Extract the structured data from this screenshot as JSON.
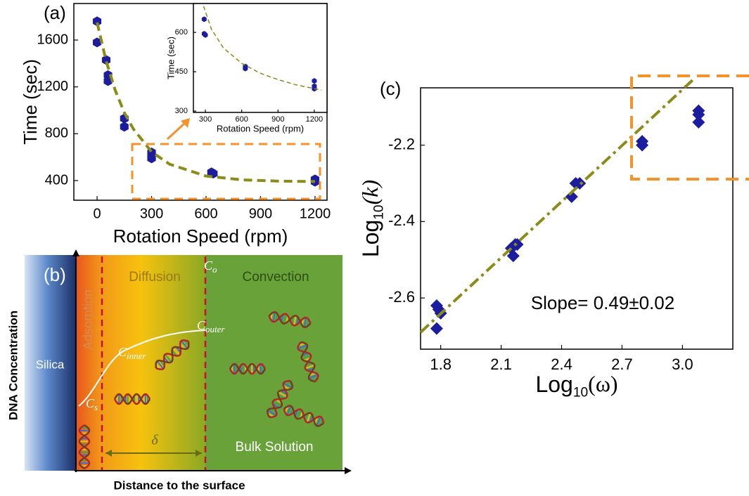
{
  "chart_data": [
    {
      "type": "scatter",
      "label": "(a)",
      "x_label": "Rotation Speed (rpm)",
      "y_label": "Time (sec)",
      "xlim": [
        -128,
        1266
      ],
      "ylim": [
        232,
        1912
      ],
      "xticks": [
        0,
        300,
        600,
        900,
        1200
      ],
      "yticks": [
        400,
        800,
        1200,
        1600
      ],
      "series": [
        {
          "mode": "markers",
          "marker": "hexagon",
          "color": "#1c1c9e",
          "x": [
            0,
            0,
            50,
            60,
            60,
            150,
            150,
            300,
            300,
            300,
            630,
            640,
            1200,
            1200
          ],
          "values": [
            1760,
            1580,
            1430,
            1300,
            1250,
            930,
            860,
            640,
            600,
            590,
            470,
            460,
            410,
            390
          ]
        },
        {
          "mode": "dashed",
          "color": "#8b8b1a",
          "x": [
            0,
            50,
            100,
            150,
            200,
            300,
            400,
            600,
            800,
            1000,
            1200
          ],
          "values": [
            1750,
            1420,
            1170,
            980,
            840,
            645,
            539,
            438,
            406,
            395,
            392
          ]
        }
      ]
    },
    {
      "type": "scatter",
      "x_label": "Rotation Speed (rpm)",
      "y_label": "Time (sec)",
      "xlim": [
        201,
        1305
      ],
      "ylim": [
        295,
        710
      ],
      "xticks": [
        300,
        600,
        900,
        1200
      ],
      "yticks": [
        300,
        450,
        600
      ],
      "series": [
        {
          "mode": "markers",
          "marker": "hexagon",
          "color": "#1c1c9e",
          "x": [
            290,
            290,
            300,
            630,
            630,
            1200,
            1200,
            1200
          ],
          "values": [
            650,
            595,
            590,
            470,
            462,
            415,
            395,
            385
          ]
        },
        {
          "mode": "dashed",
          "color": "#8b8b1a",
          "x": [
            285,
            350,
            450,
            600,
            750,
            900,
            1050,
            1260
          ],
          "values": [
            700,
            612,
            540,
            482,
            445,
            420,
            400,
            380
          ]
        }
      ]
    },
    {
      "type": "scatter",
      "label": "(c)",
      "annotation": "Slope= 0.49±0.02",
      "x_label": {
        "base": "Log",
        "sub": "10",
        "arg": "(ω)"
      },
      "y_label": {
        "base": "Log",
        "sub": "10",
        "arg": "(k)"
      },
      "xlim": [
        1.7,
        3.25
      ],
      "ylim": [
        -2.734,
        -2.05
      ],
      "xticks": [
        1.8,
        2.1,
        2.4,
        2.7,
        {
          "value": 3,
          "label": "3.0"
        }
      ],
      "yticks": [
        -2.6,
        -2.4,
        -2.2
      ],
      "series": [
        {
          "mode": "markers",
          "marker": "diamond",
          "color": "#1c1c9e",
          "x": [
            1.78,
            1.79,
            1.8,
            1.78,
            2.15,
            2.17,
            2.16,
            2.18,
            2.45,
            2.47,
            2.49,
            2.8,
            2.8,
            3.08,
            3.08,
            3.08
          ],
          "values": [
            -2.62,
            -2.63,
            -2.64,
            -2.68,
            -2.47,
            -2.46,
            -2.49,
            -2.46,
            -2.335,
            -2.3,
            -2.3,
            -2.19,
            -2.2,
            -2.11,
            -2.12,
            -2.14
          ]
        },
        {
          "mode": "dashdot",
          "color": "#8b8b1a",
          "x": [
            1.7,
            3.05
          ],
          "values": [
            -2.69,
            -2.03
          ]
        }
      ]
    }
  ],
  "diagram": {
    "label": "(b)",
    "silica": "Silica",
    "adsorption": "Adsorption",
    "diffusion": "Diffusion",
    "convection": "Convection",
    "c_o": {
      "main": "C",
      "sub": "o"
    },
    "c_outer": {
      "main": "C",
      "sub": "outer"
    },
    "c_inner": {
      "main": "C",
      "sub": "inner"
    },
    "c_s": {
      "main": "C",
      "sub": "s"
    },
    "delta": "δ",
    "bulk": "Bulk Solution",
    "y_axis": "DNA Concentration",
    "x_axis": "Distance to the surface"
  }
}
